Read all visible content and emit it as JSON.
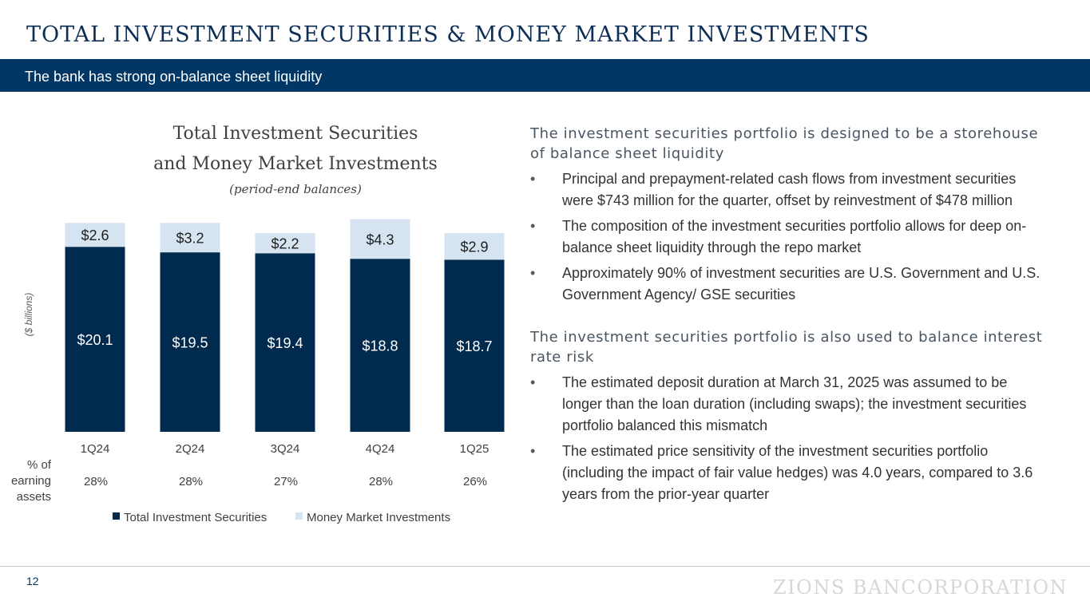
{
  "header": {
    "title": "TOTAL INVESTMENT SECURITIES & MONEY MARKET INVESTMENTS",
    "subtitle": "The bank has strong on-balance sheet liquidity"
  },
  "chart_data": {
    "type": "bar",
    "stacked": true,
    "title_lines": [
      "Total Investment Securities",
      "and Money Market Investments"
    ],
    "subtitle": "(period-end balances)",
    "ylabel": "($ billions)",
    "categories": [
      "1Q24",
      "2Q24",
      "3Q24",
      "4Q24",
      "1Q25"
    ],
    "series": [
      {
        "name": "Total Investment Securities",
        "values": [
          20.1,
          19.5,
          19.4,
          18.8,
          18.7
        ],
        "labels": [
          "$20.1",
          "$19.5",
          "$19.4",
          "$18.8",
          "$18.7"
        ],
        "color": "#002b4e"
      },
      {
        "name": "Money Market Investments",
        "values": [
          2.6,
          3.2,
          2.2,
          4.3,
          2.9
        ],
        "labels": [
          "$2.6",
          "$3.2",
          "$2.2",
          "$4.3",
          "$2.9"
        ],
        "color": "#d6e4f1"
      }
    ],
    "secondary_row": {
      "label_lines": [
        "% of",
        "earning",
        "assets"
      ],
      "values": [
        "28%",
        "28%",
        "27%",
        "28%",
        "26%"
      ]
    },
    "ylim": [
      0,
      23.5
    ],
    "legend_position": "bottom",
    "grid": false
  },
  "right": {
    "sections": [
      {
        "heading": "The investment securities portfolio is designed to be a storehouse of balance sheet liquidity",
        "bullets": [
          "Principal and prepayment-related cash flows from investment securities were $743 million for the quarter, offset by reinvestment of $478 million",
          "The composition of the investment securities portfolio allows for deep on-balance sheet liquidity through the repo market",
          "Approximately 90% of investment securities are U.S. Government and U.S. Government Agency/ GSE securities"
        ]
      },
      {
        "heading": "The investment securities portfolio is also used to balance interest rate risk",
        "bullets": [
          "The estimated deposit duration at March 31, 2025 was assumed to be longer than the loan duration (including swaps); the investment securities portfolio balanced this mismatch",
          "The estimated price sensitivity of the investment securities portfolio (including the impact of fair value hedges) was 4.0 years, compared to 3.6 years from the prior-year quarter"
        ]
      }
    ]
  },
  "footer": {
    "page_number": "12",
    "logo_text": "ZIONS BANCORPORATION"
  }
}
